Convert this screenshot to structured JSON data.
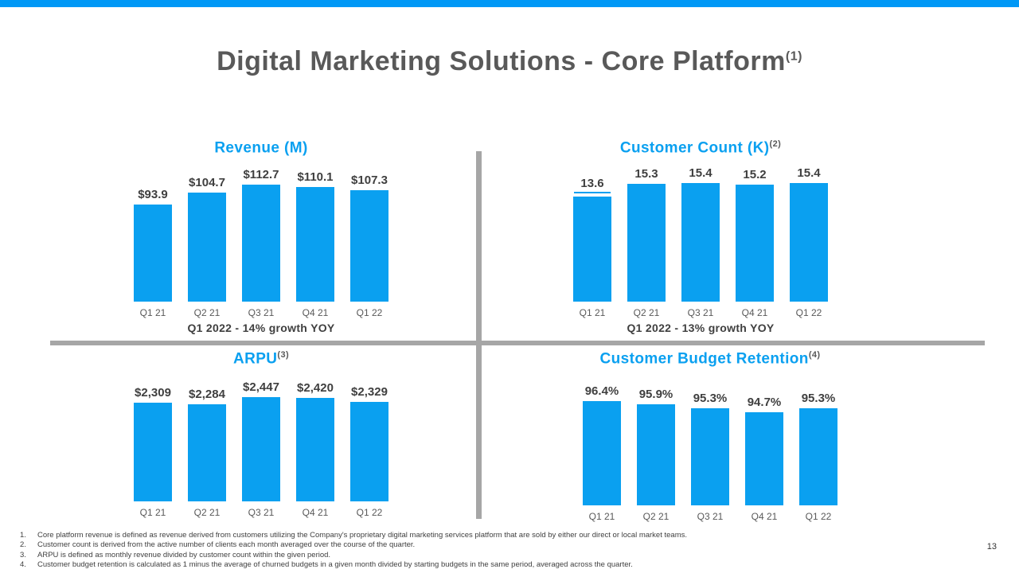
{
  "slide": {
    "title": "Digital Marketing Solutions - Core Platform",
    "title_superscript": "(1)",
    "page_number": "13"
  },
  "colors": {
    "accent_blue": "#0aa0f0",
    "top_bar_blue": "#0098f6",
    "divider_gray": "#a6a6a6",
    "title_gray": "#595959",
    "label_gray": "#3f3f3f"
  },
  "chart_data": [
    {
      "type": "bar",
      "title": "Revenue (M)",
      "title_superscript": "",
      "categories": [
        "Q1 21",
        "Q2 21",
        "Q3 21",
        "Q4 21",
        "Q1 22"
      ],
      "values": [
        93.9,
        104.7,
        112.7,
        110.1,
        107.3
      ],
      "labels": [
        "$93.9",
        "$104.7",
        "$112.7",
        "$110.1",
        "$107.3"
      ],
      "subtitle": "Q1 2022 - 14% growth YOY",
      "ylim": [
        0,
        120
      ],
      "grid": false,
      "legend": "none"
    },
    {
      "type": "bar",
      "title": "Customer Count (K)",
      "title_superscript": "(2)",
      "categories": [
        "Q1 21",
        "Q2 21",
        "Q3 21",
        "Q4 21",
        "Q1 22"
      ],
      "values": [
        13.6,
        15.3,
        15.4,
        15.2,
        15.4
      ],
      "labels": [
        "13.6",
        "15.3",
        "15.4",
        "15.2",
        "15.4"
      ],
      "subtitle": "Q1 2022 - 13% growth YOY",
      "ylim": [
        0,
        16
      ],
      "grid": false,
      "legend": "none"
    },
    {
      "type": "bar",
      "title": "ARPU",
      "title_superscript": "(3)",
      "categories": [
        "Q1 21",
        "Q2 21",
        "Q3 21",
        "Q4 21",
        "Q1 22"
      ],
      "values": [
        2309,
        2284,
        2447,
        2420,
        2329
      ],
      "labels": [
        "$2,309",
        "$2,284",
        "$2,447",
        "$2,420",
        "$2,329"
      ],
      "subtitle": "",
      "ylim": [
        0,
        2500
      ],
      "grid": false,
      "legend": "none"
    },
    {
      "type": "bar",
      "title": "Customer Budget Retention",
      "title_superscript": "(4)",
      "categories": [
        "Q1 21",
        "Q2 21",
        "Q3 21",
        "Q4 21",
        "Q1 22"
      ],
      "values": [
        96.4,
        95.9,
        95.3,
        94.7,
        95.3
      ],
      "labels": [
        "96.4%",
        "95.9%",
        "95.3%",
        "94.7%",
        "95.3%"
      ],
      "subtitle": "",
      "ylim": [
        80,
        98
      ],
      "grid": false,
      "legend": "none"
    }
  ],
  "footnotes": [
    {
      "num": "1.",
      "text": "Core platform revenue is defined as revenue derived from customers utilizing the Company's proprietary digital marketing services platform that are sold by either our direct or local market teams."
    },
    {
      "num": "2.",
      "text": "Customer count is derived from the active number of clients each month averaged over the course of the quarter."
    },
    {
      "num": "3.",
      "text": "ARPU is defined as monthly revenue divided by customer count within the given period."
    },
    {
      "num": "4.",
      "text": "Customer budget retention is calculated as 1 minus the average of churned budgets in a given month divided by starting budgets in the same period, averaged across the quarter."
    }
  ]
}
